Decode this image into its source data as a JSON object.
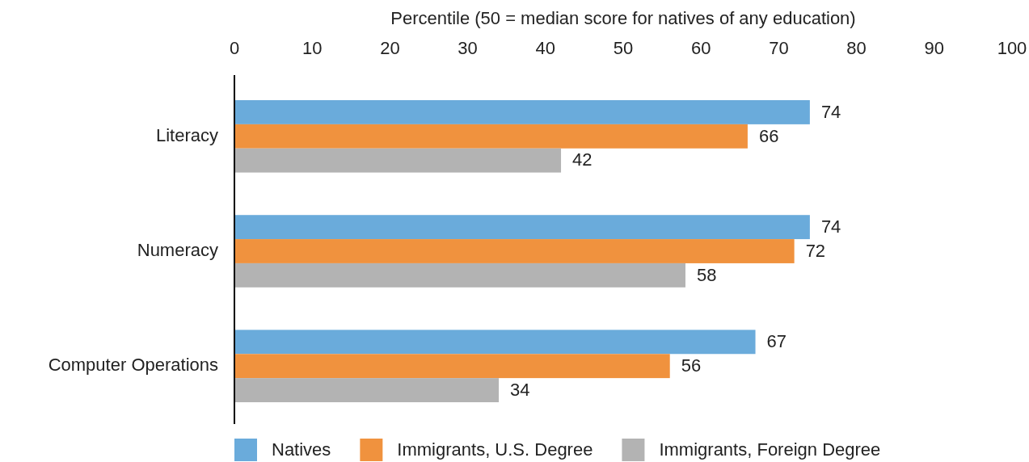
{
  "chart_data": {
    "type": "bar",
    "orientation": "horizontal",
    "title": "Percentile (50 = median score for natives of any education)",
    "categories": [
      "Literacy",
      "Numeracy",
      "Computer Operations"
    ],
    "series": [
      {
        "name": "Natives",
        "color": "#6aabdb",
        "values": [
          74,
          74,
          67
        ]
      },
      {
        "name": "Immigrants, U.S. Degree",
        "color": "#f0923e",
        "values": [
          66,
          72,
          56
        ]
      },
      {
        "name": "Immigrants, Foreign Degree",
        "color": "#b3b3b3",
        "values": [
          42,
          58,
          34
        ]
      }
    ],
    "xlim": [
      0,
      100
    ],
    "xticks": [
      0,
      10,
      20,
      30,
      40,
      50,
      60,
      70,
      80,
      90,
      100
    ],
    "data_labels": true,
    "legend": "bottom",
    "grid": false
  }
}
